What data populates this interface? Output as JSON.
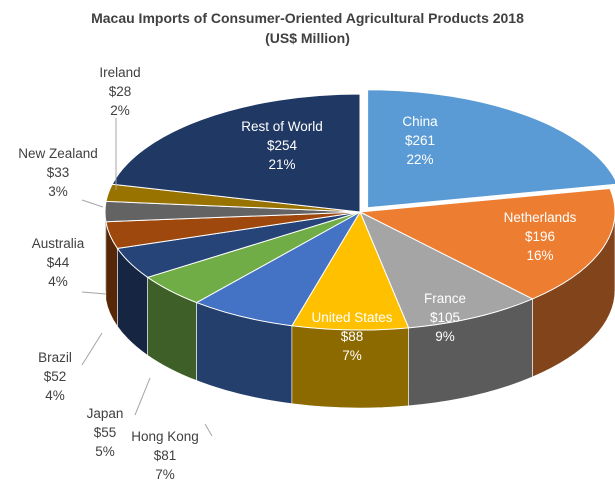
{
  "chart_data": {
    "type": "pie",
    "style": "3d-exploded-pie",
    "title": "Macau Imports of Consumer-Oriented Agricultural Products 2018",
    "subtitle": "(US$ Million)",
    "legend": "none",
    "slices": [
      {
        "name": "China",
        "value": 261,
        "value_label": "$261",
        "percent_label": "22%",
        "color": "#5b9bd5"
      },
      {
        "name": "Netherlands",
        "value": 196,
        "value_label": "$196",
        "percent_label": "16%",
        "color": "#ed7d31"
      },
      {
        "name": "France",
        "value": 105,
        "value_label": "$105",
        "percent_label": "9%",
        "color": "#a5a5a5"
      },
      {
        "name": "United States",
        "value": 88,
        "value_label": "$88",
        "percent_label": "7%",
        "color": "#ffc000"
      },
      {
        "name": "Hong Kong",
        "value": 81,
        "value_label": "$81",
        "percent_label": "7%",
        "color": "#4472c4"
      },
      {
        "name": "Japan",
        "value": 55,
        "value_label": "$55",
        "percent_label": "5%",
        "color": "#70ad47"
      },
      {
        "name": "Brazil",
        "value": 52,
        "value_label": "$52",
        "percent_label": "4%",
        "color": "#264478"
      },
      {
        "name": "Australia",
        "value": 44,
        "value_label": "$44",
        "percent_label": "4%",
        "color": "#9e480e"
      },
      {
        "name": "New Zealand",
        "value": 33,
        "value_label": "$33",
        "percent_label": "3%",
        "color": "#636363"
      },
      {
        "name": "Ireland",
        "value": 28,
        "value_label": "$28",
        "percent_label": "2%",
        "color": "#997300"
      },
      {
        "name": "Rest of World",
        "value": 254,
        "value_label": "$254",
        "percent_label": "21%",
        "color": "#203864"
      }
    ]
  }
}
